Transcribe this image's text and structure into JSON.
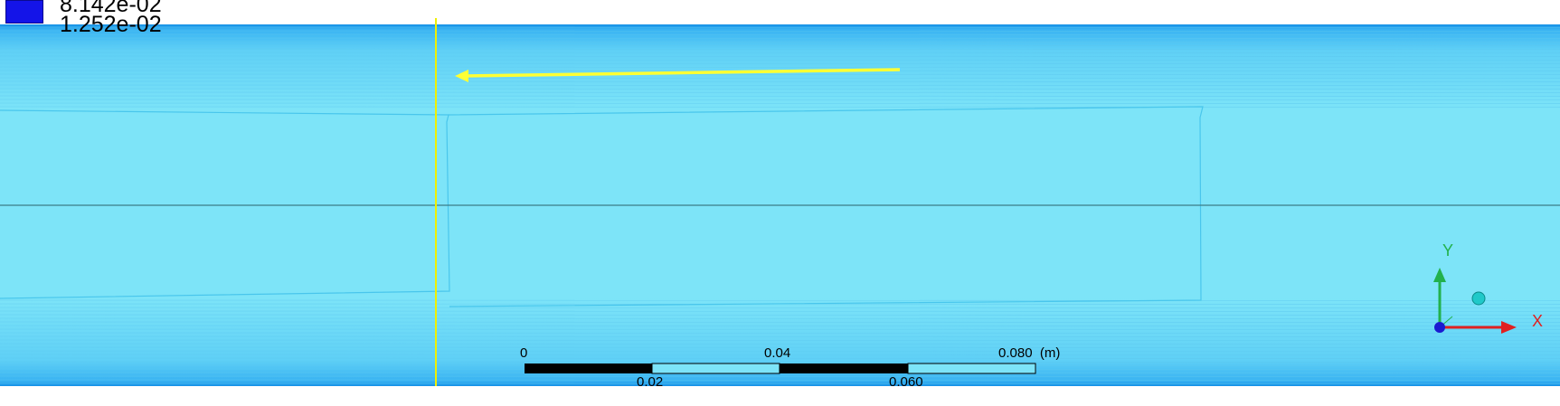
{
  "legend": {
    "value_upper": "8.142e-02",
    "value_lower": "1.252e-02",
    "swatch_color": "#1414e8"
  },
  "scale_bar": {
    "top_labels": [
      "0",
      "0.04",
      "0.080  (m)"
    ],
    "bottom_labels": [
      "0.02",
      "0.060"
    ]
  },
  "triad": {
    "y_label": "Y",
    "x_label": "X",
    "y_color": "#22b14c",
    "x_color": "#e02020",
    "z_color": "#1a1ad0"
  },
  "colors": {
    "field": "#7de4f8",
    "band_dark": "#1590e6",
    "band_mid": "#4cc4f4",
    "flow_arrow": "#ffff33",
    "probe_line": "#f0f000"
  }
}
